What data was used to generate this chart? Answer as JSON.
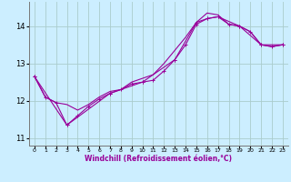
{
  "xlabel": "Windchill (Refroidissement éolien,°C)",
  "bg_color": "#cceeff",
  "grid_color": "#aacccc",
  "line_color": "#990099",
  "xlim": [
    -0.5,
    23.5
  ],
  "ylim": [
    10.8,
    14.65
  ],
  "yticks": [
    11,
    12,
    13,
    14
  ],
  "xticks": [
    0,
    1,
    2,
    3,
    4,
    5,
    6,
    7,
    8,
    9,
    10,
    11,
    12,
    13,
    14,
    15,
    16,
    17,
    18,
    19,
    20,
    21,
    22,
    23
  ],
  "series1_x": [
    0,
    1,
    2,
    3,
    4,
    5,
    6,
    7,
    8,
    9,
    10,
    11,
    12,
    13,
    14,
    15,
    16,
    17,
    18,
    19,
    20,
    21,
    22,
    23
  ],
  "series1_y": [
    12.65,
    12.1,
    11.95,
    11.35,
    11.6,
    11.85,
    12.05,
    12.2,
    12.3,
    12.45,
    12.5,
    12.55,
    12.8,
    13.1,
    13.5,
    14.05,
    14.2,
    14.25,
    14.05,
    14.0,
    13.85,
    13.5,
    13.45,
    13.5
  ],
  "series2_x": [
    0,
    1,
    2,
    3,
    4,
    5,
    6,
    7,
    8,
    9,
    10,
    11,
    12,
    13,
    14,
    15,
    16,
    17,
    18,
    19,
    20,
    21,
    22,
    23
  ],
  "series2_y": [
    12.65,
    12.1,
    11.95,
    11.9,
    11.75,
    11.9,
    12.1,
    12.25,
    12.3,
    12.5,
    12.6,
    12.7,
    13.0,
    13.35,
    13.7,
    14.1,
    14.35,
    14.3,
    14.05,
    14.0,
    13.85,
    13.5,
    13.45,
    13.5
  ],
  "series3_x": [
    0,
    3,
    7,
    10,
    13,
    15,
    16,
    17,
    19,
    21,
    23
  ],
  "series3_y": [
    12.65,
    11.35,
    12.2,
    12.5,
    13.1,
    14.1,
    14.2,
    14.25,
    14.0,
    13.5,
    13.5
  ],
  "marker": "+"
}
